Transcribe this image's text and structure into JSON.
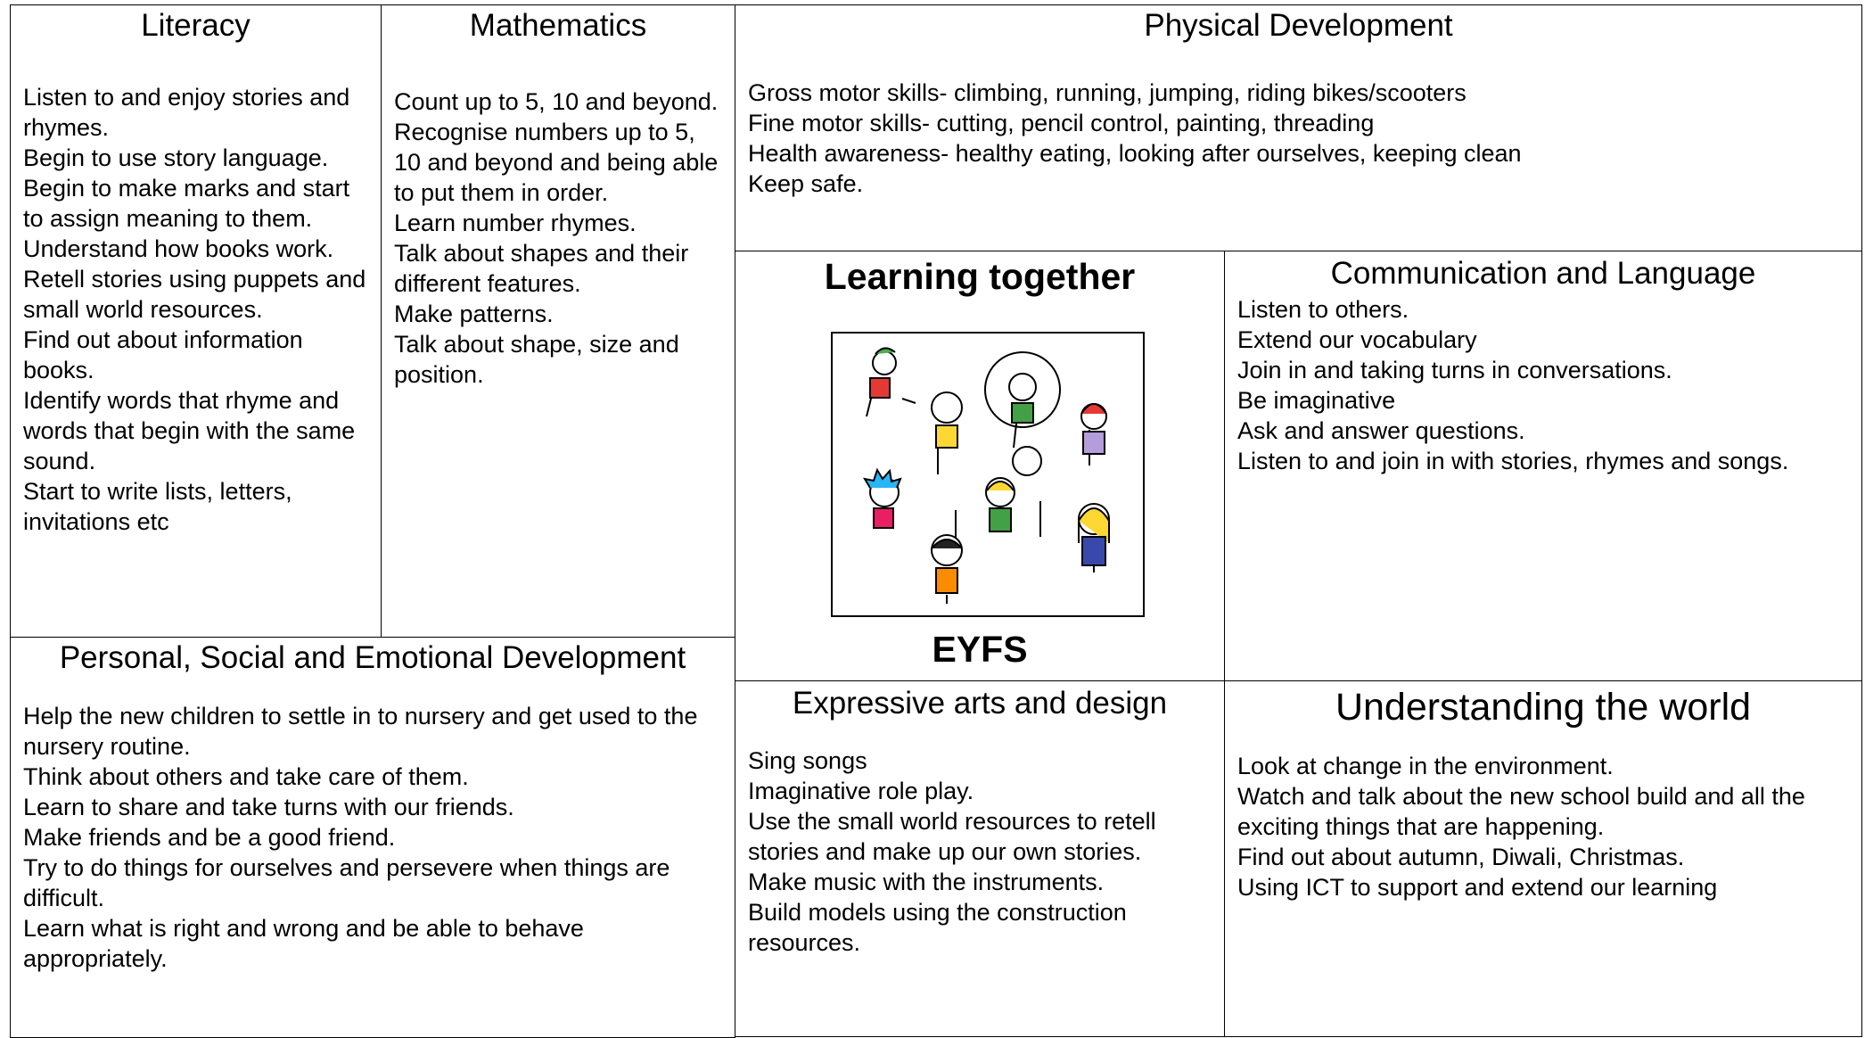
{
  "cells": {
    "literacy": {
      "title": "Literacy",
      "lines": [
        "Listen to and enjoy stories and rhymes.",
        "Begin to use story language.",
        "Begin to make marks and start to assign meaning to them.",
        "Understand how books work.",
        "Retell stories using puppets and small world resources.",
        "Find out about information books.",
        "Identify words that rhyme and words that begin with the same sound.",
        "Start to write lists, letters, invitations etc"
      ]
    },
    "maths": {
      "title": "Mathematics",
      "lines": [
        "Count up to 5, 10 and beyond.",
        "Recognise numbers up to 5, 10 and beyond and being able to put them in order.",
        "Learn number rhymes.",
        "Talk about shapes and their different features.",
        "Make patterns.",
        "Talk about shape, size and position."
      ]
    },
    "physical": {
      "title": "Physical Development",
      "lines": [
        "Gross motor skills- climbing, running, jumping, riding bikes/scooters",
        "Fine motor skills- cutting, pencil control, painting, threading",
        "Health awareness- healthy eating, looking after ourselves, keeping clean",
        "Keep safe."
      ]
    },
    "comm": {
      "title": "Communication and  Language",
      "lines": [
        "Listen to others.",
        "Extend our vocabulary",
        "Join in and taking turns in conversations.",
        "Be imaginative",
        "Ask and answer questions.",
        "Listen to and join in with stories, rhymes and songs."
      ]
    },
    "psed": {
      "title": "Personal, Social and Emotional Development",
      "lines": [
        "Help the new children to settle in to nursery and get used to the nursery routine.",
        "Think about others and take care of them.",
        "Learn to share and take turns with our friends.",
        "Make friends and be a good friend.",
        "Try to do things for ourselves and persevere when things are difficult.",
        "Learn what is right and wrong and be able to behave appropriately."
      ]
    },
    "arts": {
      "title": "Expressive arts and design",
      "lines": [
        "Sing songs",
        "Imaginative role play.",
        "Use the small world resources to retell stories and make up our own stories.",
        "Make music with the instruments.",
        "Build models using the construction resources."
      ]
    },
    "world": {
      "title": "Understanding the world",
      "lines": [
        "Look at change in the environment.",
        "Watch and talk about the new school build and all the exciting things that are happening.",
        "Find out about autumn, Diwali, Christmas.",
        "Using ICT to support and extend our learning"
      ]
    }
  },
  "center": {
    "title": "Learning together",
    "label": "EYFS"
  }
}
